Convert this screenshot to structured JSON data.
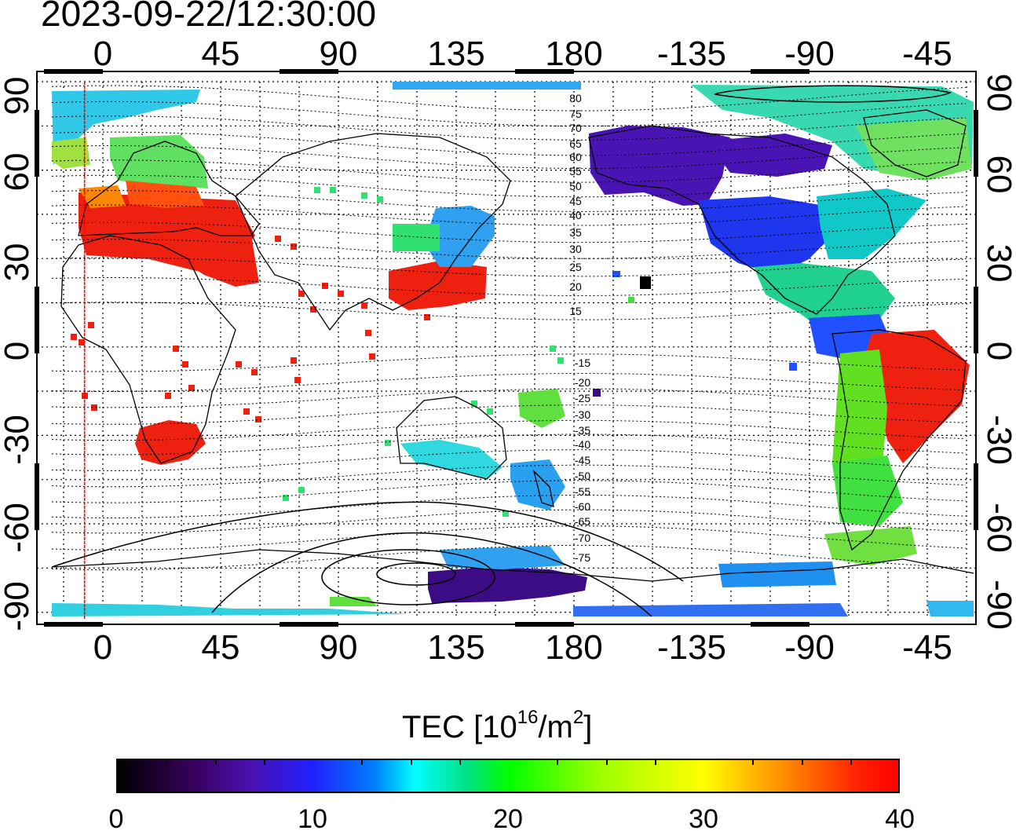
{
  "timestamp": "2023-09-22/12:30:00",
  "map": {
    "lon_ticks": [
      "0",
      "45",
      "90",
      "135",
      "180",
      "-135",
      "-90",
      "-45"
    ],
    "lat_ticks": [
      "90",
      "60",
      "30",
      "0",
      "-30",
      "-60",
      "-90"
    ],
    "contour_labels": [
      "80",
      "75",
      "70",
      "65",
      "60",
      "55",
      "50",
      "45",
      "40",
      "35",
      "30",
      "25",
      "20",
      "15",
      "-15",
      "-20",
      "-25",
      "-30",
      "-35",
      "-40",
      "-45",
      "-50",
      "-55",
      "-60",
      "-65",
      "-70",
      "-75"
    ],
    "terminator_line_lon": -7
  },
  "colorbar": {
    "title_prefix": "TEC  [10",
    "title_exp": "16",
    "title_mid": "/m",
    "title_exp2": "2",
    "title_suffix": "]",
    "labels": [
      "0",
      "10",
      "20",
      "30",
      "40"
    ],
    "min": 0,
    "max": 40
  }
}
